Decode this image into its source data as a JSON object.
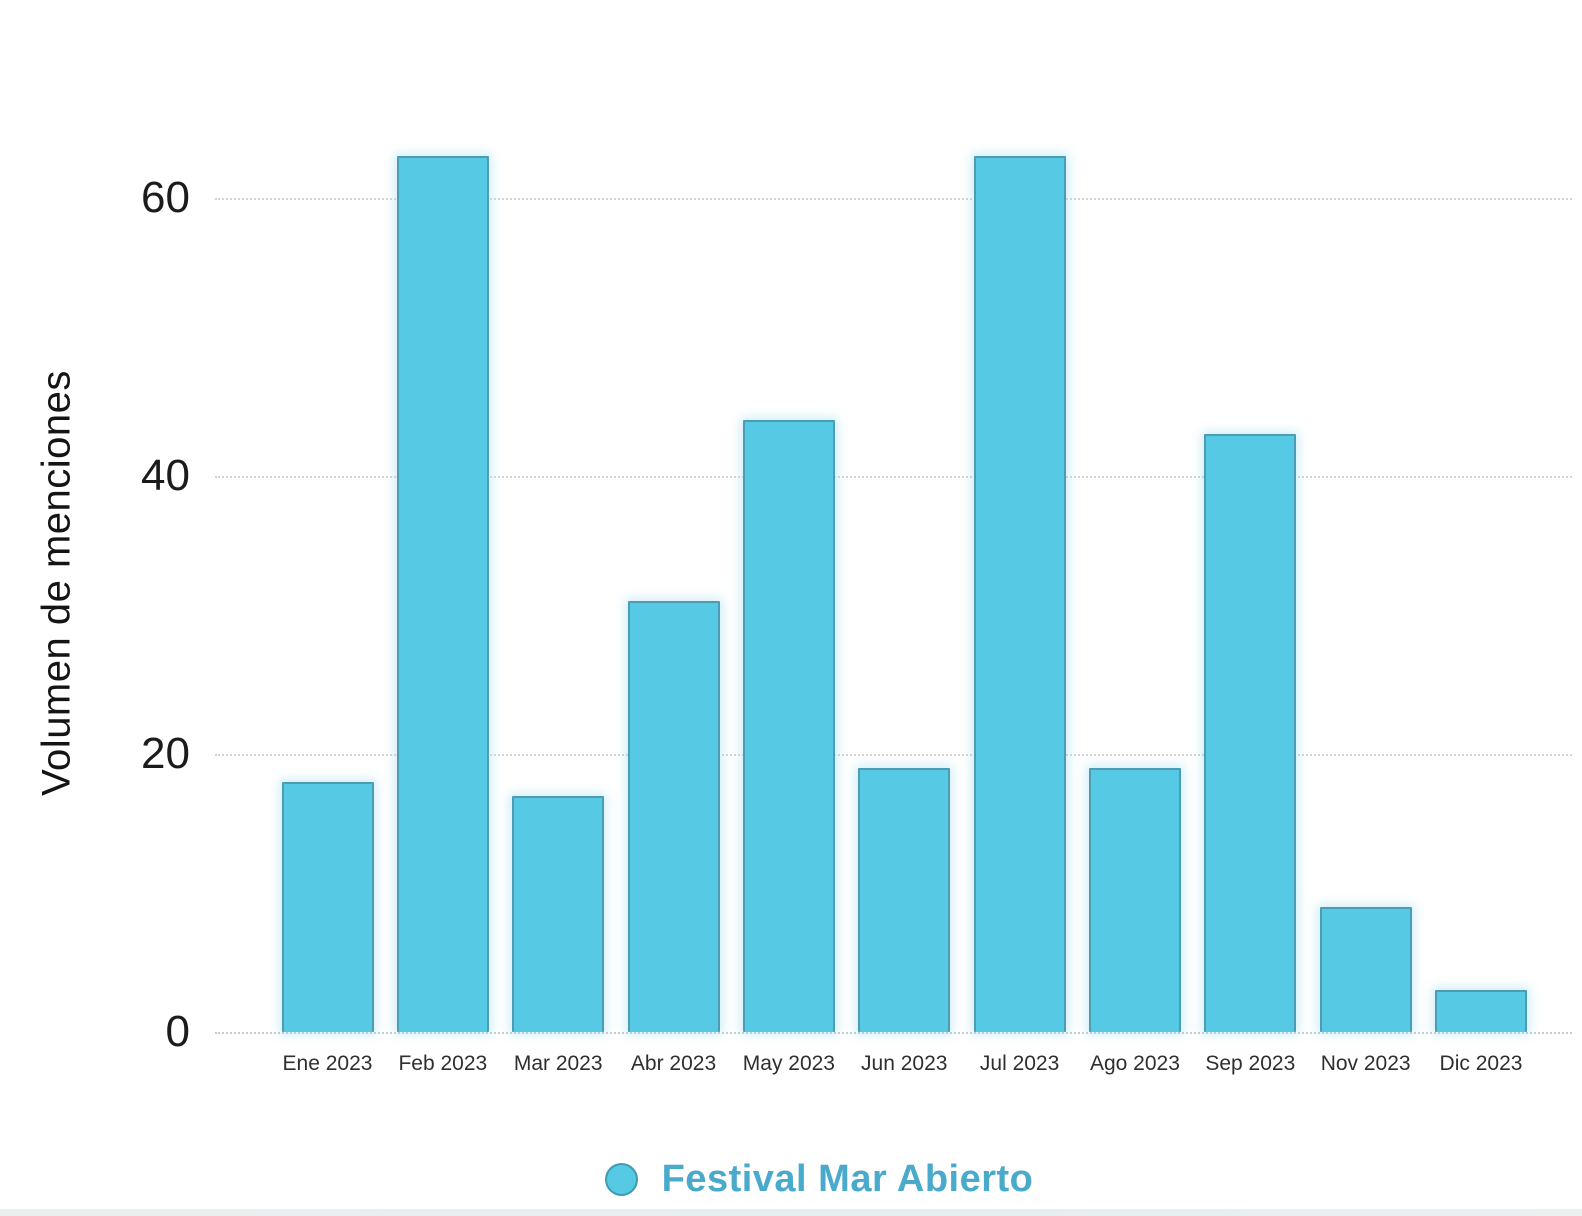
{
  "chart_data": {
    "type": "bar",
    "title": "",
    "xlabel": "",
    "ylabel": "Volumen de menciones",
    "categories": [
      "Ene 2023",
      "Feb 2023",
      "Mar 2023",
      "Abr 2023",
      "May 2023",
      "Jun 2023",
      "Jul 2023",
      "Ago 2023",
      "Sep 2023",
      "Nov 2023",
      "Dic 2023"
    ],
    "series": [
      {
        "name": "Festival Mar Abierto",
        "values": [
          18,
          63,
          17,
          31,
          44,
          19,
          63,
          19,
          43,
          9,
          3
        ],
        "color": "#56CAE4"
      }
    ],
    "y_ticks": [
      0,
      20,
      40,
      60
    ],
    "ylim": [
      0,
      65
    ],
    "grid": "horizontal-dotted",
    "legend_position": "bottom-center"
  },
  "colors": {
    "bar_fill": "#56CAE4",
    "bar_border": "#3E7C8E",
    "legend_text": "#49AACB",
    "axis_text": "#1b1b1b",
    "gridline": "#cdcdcd",
    "background": "#ffffff"
  }
}
